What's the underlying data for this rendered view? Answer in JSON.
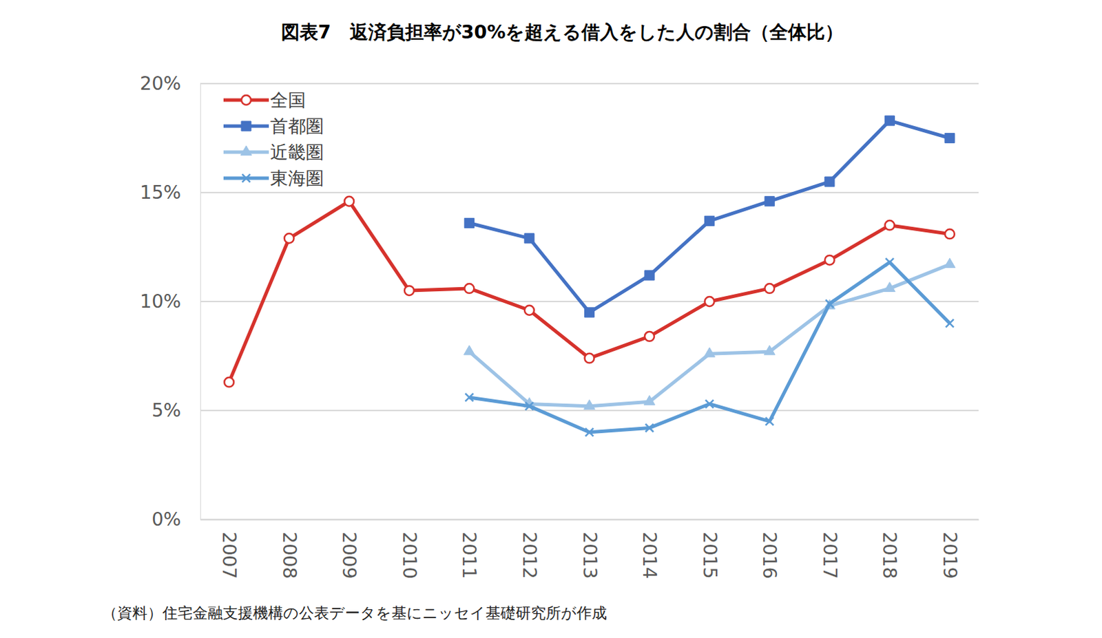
{
  "chart_data": {
    "type": "line",
    "title": "図表7　返済負担率が30%を超える借入をした人の割合（全体比）",
    "source": "（資料）住宅金融支援機構の公表データを基にニッセイ基礎研究所が作成",
    "categories": [
      "2007",
      "2008",
      "2009",
      "2010",
      "2011",
      "2012",
      "2013",
      "2014",
      "2015",
      "2016",
      "2017",
      "2018",
      "2019"
    ],
    "series": [
      {
        "name": "全国",
        "color": "#d6322c",
        "marker": "circle",
        "line_style": "solid",
        "values": [
          6.3,
          12.9,
          14.6,
          10.5,
          10.6,
          9.6,
          7.4,
          8.4,
          10.0,
          10.6,
          11.9,
          13.5,
          13.1
        ]
      },
      {
        "name": "首都圏",
        "color": "#4472c4",
        "marker": "square",
        "line_style": "solid",
        "values": [
          null,
          null,
          null,
          null,
          13.6,
          12.9,
          9.5,
          11.2,
          13.7,
          14.6,
          15.5,
          18.3,
          17.5
        ]
      },
      {
        "name": "近畿圏",
        "color": "#9dc3e6",
        "marker": "triangle",
        "line_style": "solid",
        "values": [
          null,
          null,
          null,
          null,
          7.7,
          5.3,
          5.2,
          5.4,
          7.6,
          7.7,
          9.8,
          10.6,
          11.7
        ]
      },
      {
        "name": "東海圏",
        "color": "#5b9bd5",
        "marker": "x",
        "line_style": "solid",
        "values": [
          null,
          null,
          null,
          null,
          5.6,
          5.2,
          4.0,
          4.2,
          5.3,
          4.5,
          9.9,
          11.8,
          9.0
        ]
      }
    ],
    "ylim": [
      0,
      20
    ],
    "yticks": [
      {
        "value": 0,
        "label": "0%"
      },
      {
        "value": 5,
        "label": "5%"
      },
      {
        "value": 10,
        "label": "10%"
      },
      {
        "value": 15,
        "label": "15%"
      },
      {
        "value": 20,
        "label": "20%"
      }
    ],
    "grid": true,
    "legend": "upper left"
  }
}
